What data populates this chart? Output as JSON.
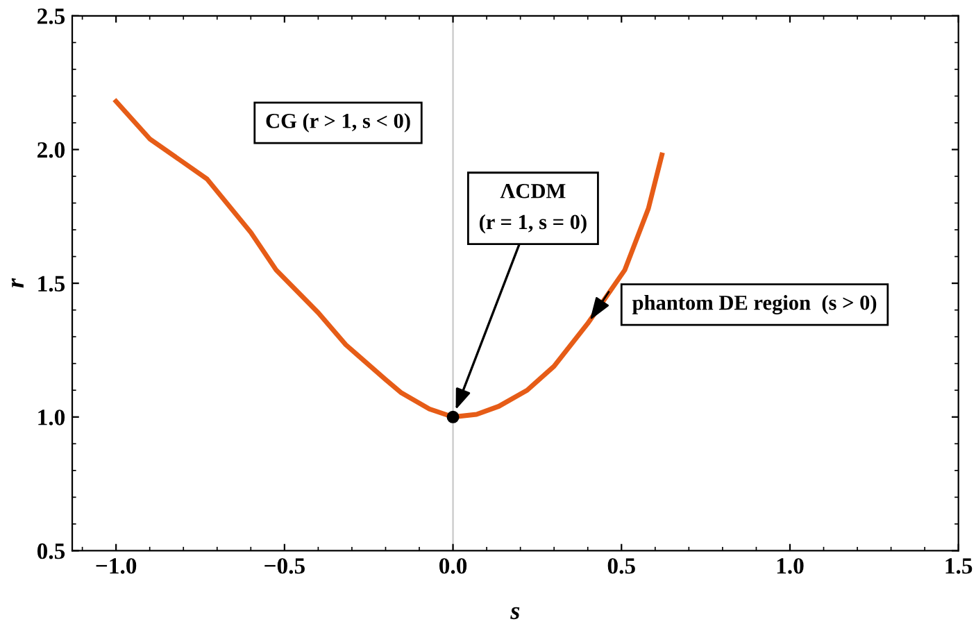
{
  "chart_data": {
    "type": "line",
    "xlabel": "s",
    "ylabel": "r",
    "series": [
      {
        "color": "#e65c17",
        "x": [
          -1.0,
          -0.9,
          -0.73,
          -0.6,
          -0.525,
          -0.4,
          -0.318,
          -0.2,
          -0.153,
          -0.07,
          0,
          0.07,
          0.136,
          0.22,
          0.3,
          0.4,
          0.51,
          0.58,
          0.62
        ],
        "values": [
          2.18,
          2.04,
          1.89,
          1.69,
          1.55,
          1.39,
          1.27,
          1.14,
          1.09,
          1.03,
          1.0,
          1.01,
          1.04,
          1.1,
          1.19,
          1.35,
          1.55,
          1.78,
          1.98
        ]
      },
      {
        "type": "scatter",
        "color": "#000000",
        "x": [
          0
        ],
        "values": [
          1.0
        ]
      }
    ],
    "annotations": [
      "CG (r > 1, s < 0)",
      {
        "text": "ΛCDM\n(r = 1, s = 0)",
        "x": 0,
        "y": 1.0
      },
      {
        "text": "phantom DE region  (s > 0)",
        "x": 0.4,
        "y": 1.35
      }
    ],
    "ref_lines": [
      {
        "axis": "x",
        "value": 0,
        "color": "#c8c8c8"
      }
    ],
    "xlim": [
      -1.13,
      1.5
    ],
    "ylim": [
      0.5,
      2.5
    ],
    "xticks": [
      {
        "value": -1.0,
        "label": "−1.0"
      },
      {
        "value": -0.5,
        "label": "−0.5"
      },
      {
        "value": 0.0,
        "label": "0.0"
      },
      {
        "value": 0.5,
        "label": "0.5"
      },
      {
        "value": 1.0,
        "label": "1.0"
      },
      {
        "value": 1.5,
        "label": "1.5"
      }
    ],
    "yticks": [
      {
        "value": 0.5,
        "label": "0.5"
      },
      {
        "value": 1.0,
        "label": "1.0"
      },
      {
        "value": 1.5,
        "label": "1.5"
      },
      {
        "value": 2.0,
        "label": "2.0"
      },
      {
        "value": 2.5,
        "label": "2.5"
      }
    ],
    "grid": false,
    "legend": false
  }
}
